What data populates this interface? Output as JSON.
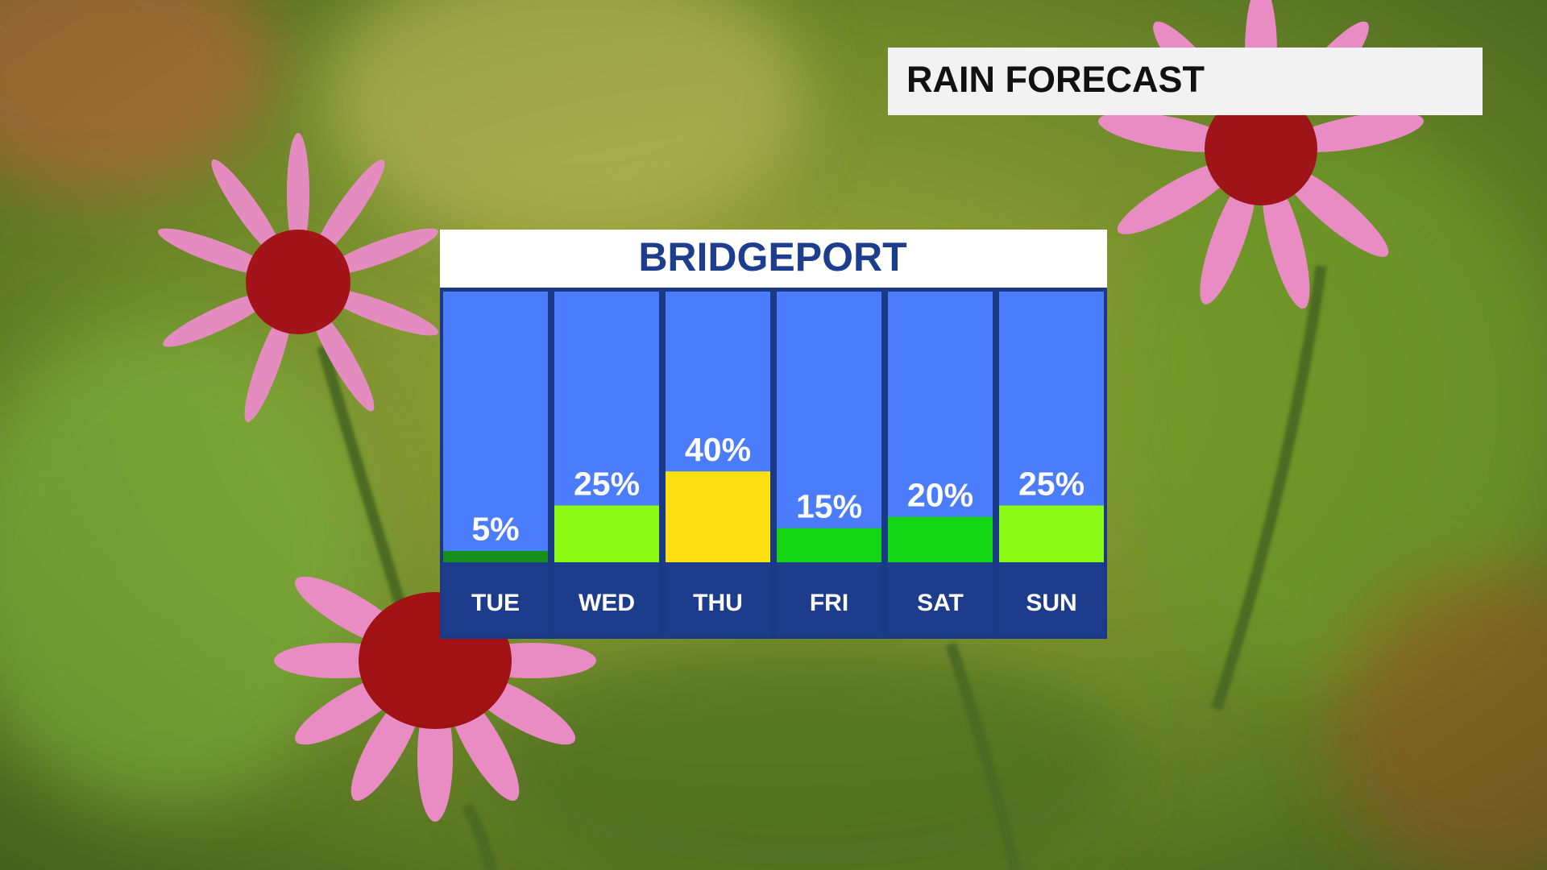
{
  "chart_data": {
    "type": "bar",
    "title": "RAIN FORECAST",
    "subtitle": "BRIDGEPORT",
    "categories": [
      "TUE",
      "WED",
      "THU",
      "FRI",
      "SAT",
      "SUN"
    ],
    "values": [
      5,
      25,
      40,
      15,
      20,
      25
    ],
    "value_labels": [
      "5%",
      "25%",
      "40%",
      "15%",
      "20%",
      "25%"
    ],
    "colors": [
      "#178f1c",
      "#8cfa14",
      "#fde012",
      "#12d514",
      "#12d514",
      "#8cfa14"
    ]
  }
}
